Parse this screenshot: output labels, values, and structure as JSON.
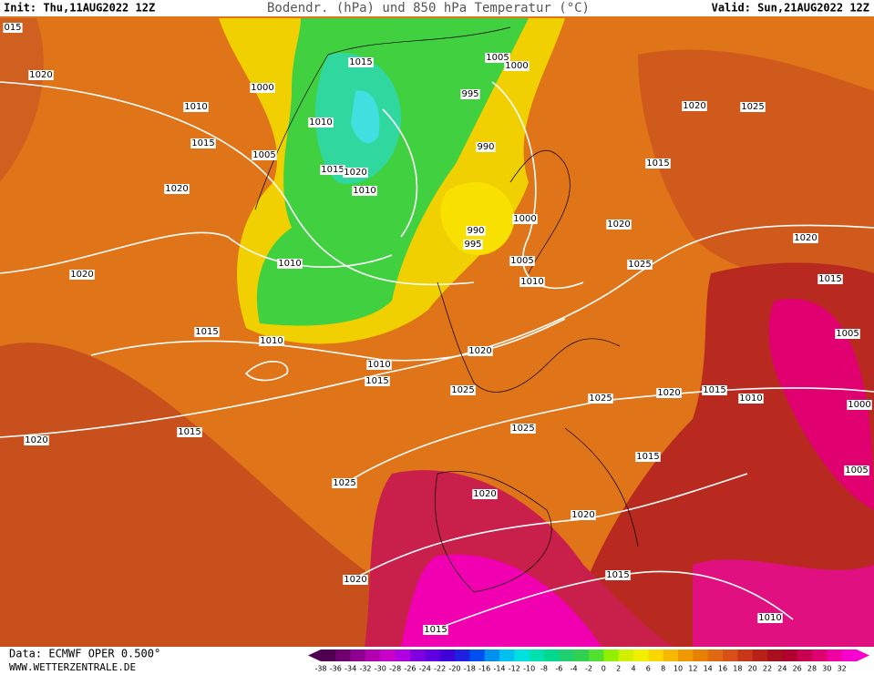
{
  "header": {
    "init": "Init: Thu,11AUG2022 12Z",
    "title": "Bodendr. (hPa) und 850 hPa Temperatur (°C)",
    "valid": "Valid: Sun,21AUG2022 12Z"
  },
  "footer": {
    "data": "Data: ECMWF OPER 0.500°",
    "site": "WWW.WETTERZENTRALE.DE"
  },
  "isobar_labels": [
    "015",
    "1020",
    "1010",
    "1000",
    "1015",
    "1005",
    "1015",
    "1010",
    "1015",
    "1020",
    "1010",
    "1005",
    "1000",
    "995",
    "990",
    "1020",
    "1025",
    "1015",
    "1020",
    "1000",
    "990",
    "995",
    "1020",
    "1020",
    "1020",
    "1010",
    "1005",
    "1010",
    "1025",
    "1015",
    "1015",
    "1010",
    "1005",
    "1020",
    "1010",
    "1015",
    "1025",
    "1025",
    "1020",
    "1015",
    "1010",
    "1000",
    "1015",
    "1025",
    "1020",
    "1015",
    "1005",
    "1025",
    "1020",
    "1020",
    "1015",
    "1020",
    "1015",
    "1010"
  ],
  "colorbar": {
    "ticks": [
      -38,
      -36,
      -34,
      -32,
      -30,
      -28,
      -26,
      -24,
      -22,
      -20,
      -18,
      -16,
      -14,
      -12,
      -10,
      -8,
      -6,
      -4,
      -2,
      0,
      2,
      4,
      6,
      8,
      10,
      12,
      14,
      16,
      18,
      20,
      22,
      24,
      26,
      28,
      30,
      32
    ],
    "colors": [
      "#500050",
      "#700070",
      "#900090",
      "#b000b0",
      "#c800c8",
      "#b000e0",
      "#8000e0",
      "#6000e0",
      "#4000d8",
      "#2020e0",
      "#0050f0",
      "#0090f0",
      "#00c0f0",
      "#00e0e0",
      "#00e0b0",
      "#00d890",
      "#20d070",
      "#30d050",
      "#50e030",
      "#90f000",
      "#d0f000",
      "#f0f000",
      "#f8d800",
      "#f8b800",
      "#f09800",
      "#e88000",
      "#e06810",
      "#d85018",
      "#c83818",
      "#b82018",
      "#a81020",
      "#b00030",
      "#c80050",
      "#e00070",
      "#f000a0",
      "#f800d0"
    ]
  }
}
